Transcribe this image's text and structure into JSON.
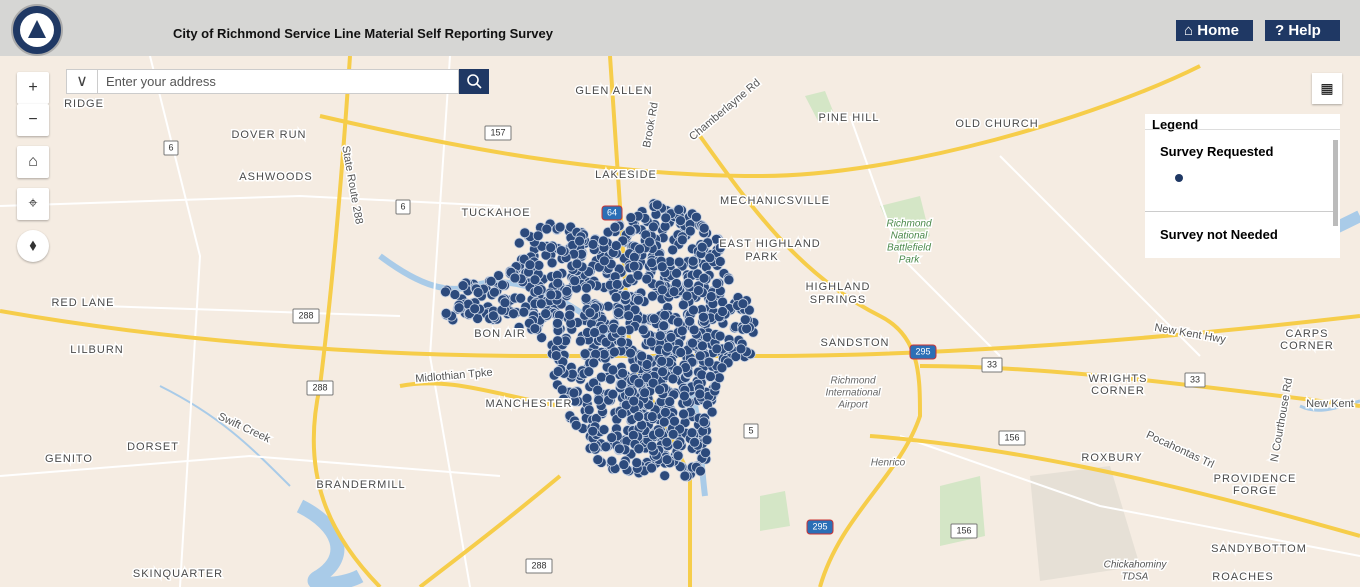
{
  "header": {
    "title": "City of Richmond Service Line Material Self Reporting Survey",
    "home": "Home",
    "help": "Help"
  },
  "search": {
    "placeholder": "Enter your address"
  },
  "legend": {
    "title": "Legend",
    "items": [
      "Survey Requested",
      "Survey not Needed"
    ]
  },
  "map": {
    "places": [
      "GLEN ALLEN",
      "PINE HILL",
      "OLD CHURCH",
      "DOVER RUN",
      "LAKESIDE",
      "ASHWOODS",
      "MECHANICSVILLE",
      "TUCKAHOE",
      "EAST HIGHLAND",
      "PARK",
      "HIGHLAND",
      "SPRINGS",
      "RED LANE",
      "BON AIR",
      "SANDSTON",
      "LILBURN",
      "CARPS",
      "CORNER",
      "WRIGHTS",
      "CORNER",
      "MANCHESTER",
      "DORSET",
      "GENITO",
      "ROXBURY",
      "PROVIDENCE",
      "FORGE",
      "BRANDERMILL",
      "SANDYBOTTOM",
      "SKINQUARTER",
      "ROACHES",
      "RIDGE"
    ],
    "poi": [
      "Henrico",
      "Richmond",
      "International",
      "Airport",
      "Richmond",
      "National",
      "Battlefield",
      "Park",
      "Chickahominy",
      "TDSA"
    ],
    "streets": [
      "State Route 288",
      "Brook Rd",
      "Chamberlayne Rd",
      "Midlothian Tpke",
      "Swift Creek",
      "New Kent Hwy",
      "Pocahontas Trl",
      "N Courthouse Rd",
      "New Kent"
    ],
    "shields": [
      "157",
      "6",
      "6",
      "64",
      "288",
      "288",
      "288",
      "295",
      "295",
      "33",
      "33",
      "5",
      "156",
      "156"
    ]
  }
}
